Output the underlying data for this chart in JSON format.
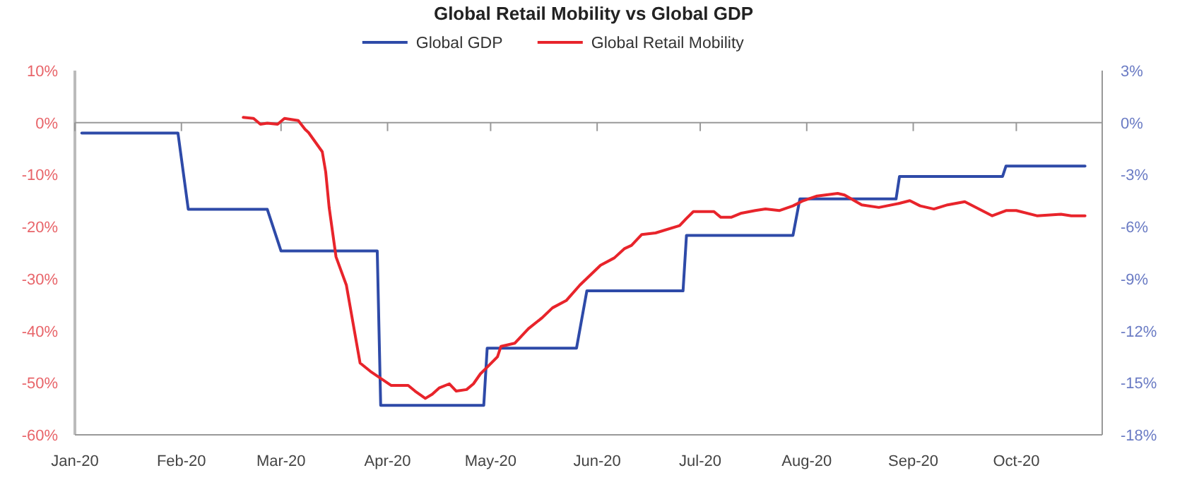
{
  "chart_data": {
    "type": "line",
    "title": "Global Retail Mobility vs Global GDP",
    "legend": "top",
    "grid": false,
    "ref_lines": [
      {
        "axis": "y",
        "value": 0,
        "color": "#999999"
      }
    ],
    "xlim": [
      "2020-01-01",
      "2020-10-26"
    ],
    "xticks": [
      {
        "value": "2020-01-01",
        "label": "Jan-20"
      },
      {
        "value": "2020-02-01",
        "label": "Feb-20"
      },
      {
        "value": "2020-03-01",
        "label": "Mar-20"
      },
      {
        "value": "2020-04-01",
        "label": "Apr-20"
      },
      {
        "value": "2020-05-01",
        "label": "May-20"
      },
      {
        "value": "2020-06-01",
        "label": "Jun-20"
      },
      {
        "value": "2020-07-01",
        "label": "Jul-20"
      },
      {
        "value": "2020-08-01",
        "label": "Aug-20"
      },
      {
        "value": "2020-09-01",
        "label": "Sep-20"
      },
      {
        "value": "2020-10-01",
        "label": "Oct-20"
      }
    ],
    "ylim": [
      -60,
      10
    ],
    "yticks": [
      {
        "value": 10,
        "label": "10%"
      },
      {
        "value": 0,
        "label": "0%"
      },
      {
        "value": -10,
        "label": "-10%"
      },
      {
        "value": -20,
        "label": "-20%"
      },
      {
        "value": -30,
        "label": "-30%"
      },
      {
        "value": -40,
        "label": "-40%"
      },
      {
        "value": -50,
        "label": "-50%"
      },
      {
        "value": -60,
        "label": "-60%"
      }
    ],
    "y2lim": [
      -18,
      3
    ],
    "y2ticks": [
      {
        "value": 3,
        "label": "3%"
      },
      {
        "value": 0,
        "label": "0%"
      },
      {
        "value": -3,
        "label": "-3%"
      },
      {
        "value": -6,
        "label": "-6%"
      },
      {
        "value": -9,
        "label": "-9%"
      },
      {
        "value": -12,
        "label": "-12%"
      },
      {
        "value": -15,
        "label": "-15%"
      },
      {
        "value": -18,
        "label": "-18%"
      }
    ],
    "series": [
      {
        "name": "Global GDP",
        "color": "#2e4aa8",
        "axis": "y2",
        "x": [
          "2020-01-03",
          "2020-01-31",
          "2020-02-03",
          "2020-02-26",
          "2020-03-01",
          "2020-03-29",
          "2020-03-30",
          "2020-04-29",
          "2020-04-30",
          "2020-05-26",
          "2020-05-29",
          "2020-06-26",
          "2020-06-27",
          "2020-07-28",
          "2020-07-30",
          "2020-08-27",
          "2020-08-28",
          "2020-09-27",
          "2020-09-28",
          "2020-10-21"
        ],
        "values": [
          -0.6,
          -0.6,
          -5.0,
          -5.0,
          -7.4,
          -7.4,
          -16.3,
          -16.3,
          -13.0,
          -13.0,
          -9.7,
          -9.7,
          -6.5,
          -6.5,
          -4.4,
          -4.4,
          -3.1,
          -3.1,
          -2.5,
          -2.5
        ]
      },
      {
        "name": "Global Retail Mobility",
        "color": "#e8242b",
        "x": [
          "2020-02-19",
          "2020-02-22",
          "2020-02-24",
          "2020-02-26",
          "2020-02-29",
          "2020-03-02",
          "2020-03-06",
          "2020-03-08",
          "2020-03-09",
          "2020-03-13",
          "2020-03-14",
          "2020-03-15",
          "2020-03-17",
          "2020-03-20",
          "2020-03-24",
          "2020-03-27",
          "2020-04-02",
          "2020-04-07",
          "2020-04-09",
          "2020-04-12",
          "2020-04-14",
          "2020-04-16",
          "2020-04-19",
          "2020-04-21",
          "2020-04-24",
          "2020-04-26",
          "2020-04-28",
          "2020-04-30",
          "2020-05-03",
          "2020-05-04",
          "2020-05-08",
          "2020-05-12",
          "2020-05-16",
          "2020-05-19",
          "2020-05-23",
          "2020-05-27",
          "2020-05-30",
          "2020-06-02",
          "2020-06-06",
          "2020-06-09",
          "2020-06-11",
          "2020-06-14",
          "2020-06-18",
          "2020-06-25",
          "2020-06-27",
          "2020-06-29",
          "2020-07-05",
          "2020-07-07",
          "2020-07-10",
          "2020-07-13",
          "2020-07-17",
          "2020-07-20",
          "2020-07-24",
          "2020-07-28",
          "2020-07-31",
          "2020-08-04",
          "2020-08-10",
          "2020-08-12",
          "2020-08-17",
          "2020-08-22",
          "2020-08-28",
          "2020-08-31",
          "2020-09-03",
          "2020-09-07",
          "2020-09-11",
          "2020-09-16",
          "2020-09-21",
          "2020-09-24",
          "2020-09-28",
          "2020-10-01",
          "2020-10-07",
          "2020-10-14",
          "2020-10-17",
          "2020-10-21"
        ],
        "values": [
          1,
          0.8,
          -0.3,
          -0.1,
          -0.3,
          0.8,
          0.4,
          -1.3,
          -1.9,
          -5.6,
          -9.5,
          -16.3,
          -25.8,
          -31.2,
          -46.2,
          -47.8,
          -50.5,
          -50.5,
          -51.6,
          -53,
          -52.2,
          -51,
          -50.2,
          -51.6,
          -51.3,
          -50.2,
          -48.3,
          -47,
          -45,
          -43,
          -42.4,
          -39.6,
          -37.5,
          -35.6,
          -34.2,
          -31.2,
          -29.3,
          -27.4,
          -26,
          -24.2,
          -23.6,
          -21.5,
          -21.2,
          -19.8,
          -18.4,
          -17.1,
          -17.1,
          -18.2,
          -18.2,
          -17.4,
          -16.9,
          -16.6,
          -16.9,
          -16,
          -15,
          -14.1,
          -13.6,
          -13.9,
          -15.8,
          -16.3,
          -15.5,
          -15,
          -16,
          -16.6,
          -15.8,
          -15.2,
          -16.9,
          -17.9,
          -16.9,
          -16.9,
          -17.9,
          -17.6,
          -17.9,
          -17.9
        ]
      }
    ]
  }
}
